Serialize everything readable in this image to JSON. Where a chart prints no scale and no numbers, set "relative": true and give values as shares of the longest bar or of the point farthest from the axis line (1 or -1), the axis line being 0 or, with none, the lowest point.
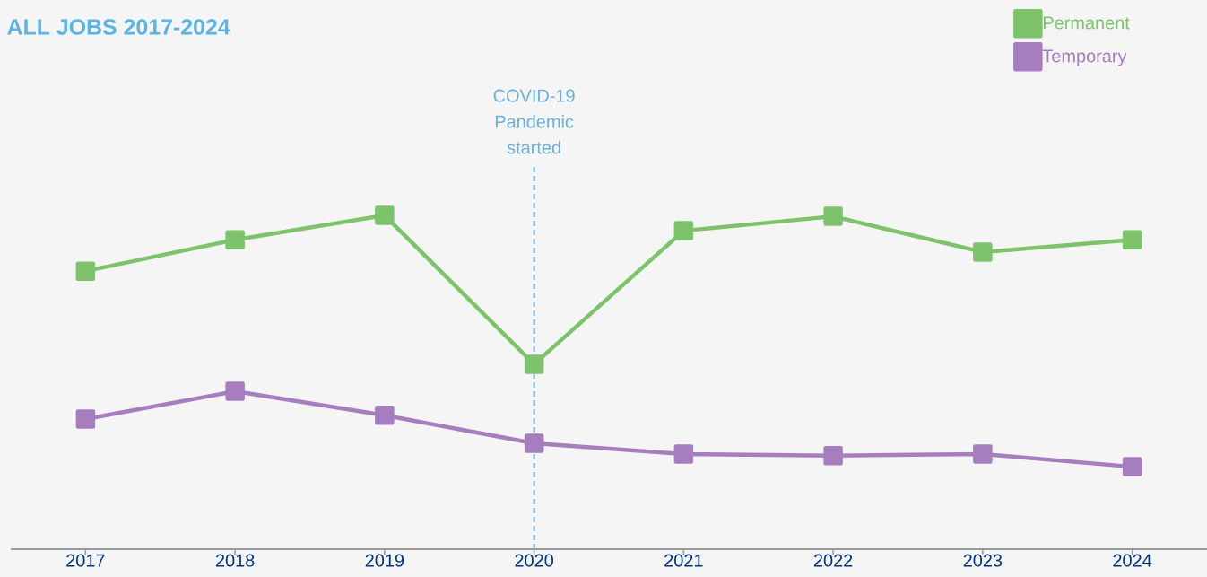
{
  "chart_data": {
    "type": "line",
    "title": "ALL JOBS 2017-2024",
    "relative": true,
    "x": [
      2017,
      2018,
      2019,
      2020,
      2021,
      2022,
      2023,
      2024
    ],
    "xlim": [
      2016.5,
      2024.5
    ],
    "xticks": [
      2017,
      2018,
      2019,
      2020,
      2021,
      2022,
      2023,
      2024
    ],
    "series": [
      {
        "name": "Permanent",
        "color": "#7dc36b",
        "values": [
          0.833,
          0.927,
          1,
          0.554,
          0.954,
          0.997,
          0.89,
          0.927
        ]
      },
      {
        "name": "Temporary",
        "color": "#a67dbf",
        "values": [
          0.39,
          0.473,
          0.401,
          0.317,
          0.285,
          0.28,
          0.285,
          0.247
        ]
      }
    ],
    "ref_lines": [
      {
        "axis": "x",
        "value": 2020,
        "label": "COVID-19 Pandemic started",
        "color": "#6ab0d8",
        "line_style": "dashed"
      }
    ],
    "marker": "square",
    "line_style": "solid",
    "grid": false,
    "legend": "top right"
  }
}
